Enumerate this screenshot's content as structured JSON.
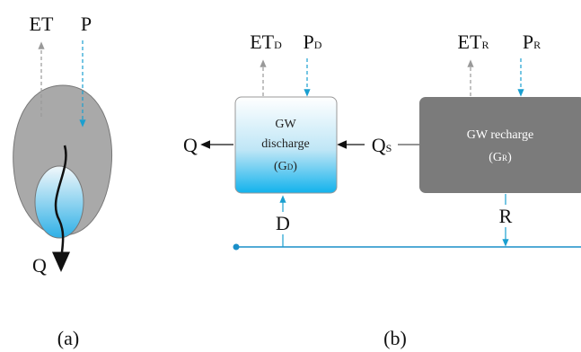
{
  "panel_a": {
    "et": "ET",
    "p": "P",
    "q": "Q",
    "caption": "(a)"
  },
  "panel_b": {
    "et_d": {
      "main": "ET",
      "sub": "D"
    },
    "p_d": {
      "main": "P",
      "sub": "D"
    },
    "et_r": {
      "main": "ET",
      "sub": "R"
    },
    "p_r": {
      "main": "P",
      "sub": "R"
    },
    "q": "Q",
    "q_s": {
      "main": "Q",
      "sub": "S"
    },
    "d": "D",
    "r": "R",
    "discharge_box": {
      "line1": "GW",
      "line2": "discharge",
      "symbol": {
        "open": "(G",
        "sub": "D",
        "close": ")"
      }
    },
    "recharge_box": {
      "line1": "GW recharge",
      "symbol": {
        "open": "(G",
        "sub": "R",
        "close": ")"
      }
    },
    "caption": "(b)"
  }
}
